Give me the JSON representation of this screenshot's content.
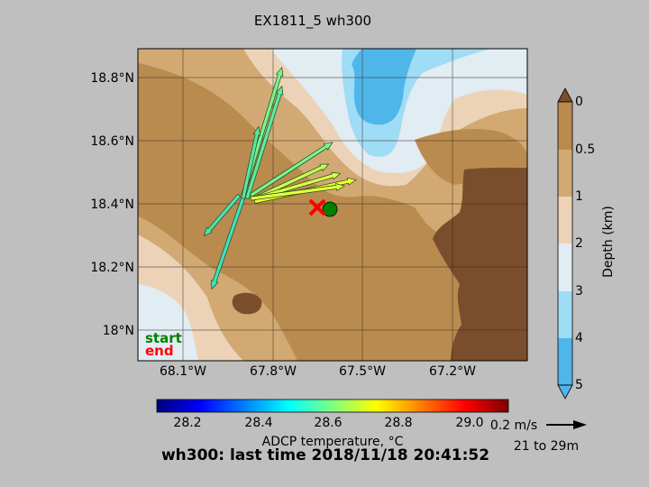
{
  "figure": {
    "title": "EX1811_5 wh300",
    "footer": "wh300: last time 2018/11/18 20:41:52"
  },
  "map": {
    "lat_ticks": [
      "18.8°N",
      "18.6°N",
      "18.4°N",
      "18.2°N",
      "18°N"
    ],
    "lon_ticks": [
      "68.1°W",
      "67.8°W",
      "67.5°W",
      "67.2°W"
    ],
    "legend": {
      "start": "start",
      "start_color": "#008000",
      "end": "end",
      "end_color": "#ff0000"
    }
  },
  "depth_colorbar": {
    "label": "Depth (km)",
    "ticks": [
      "0",
      "0.5",
      "1",
      "2",
      "3",
      "4",
      "5"
    ],
    "colors": [
      "#7a4e2c",
      "#b98b4f",
      "#d2a973",
      "#ecd3b8",
      "#e1ecf3",
      "#9fdcf5",
      "#4fb6ea"
    ]
  },
  "temp_colorbar": {
    "label": "ADCP temperature, °C",
    "ticks": [
      "28.2",
      "28.4",
      "28.6",
      "28.8",
      "29.0"
    ]
  },
  "scale": {
    "speed": "0.2 m/s",
    "depth_range": "21 to 29m"
  },
  "vectors": [
    {
      "tail": [
        0.27,
        0.53
      ],
      "head": [
        0.37,
        0.94
      ],
      "color": "#7cf28e"
    },
    {
      "tail": [
        0.28,
        0.52
      ],
      "head": [
        0.37,
        0.88
      ],
      "color": "#5fe8a0"
    },
    {
      "tail": [
        0.27,
        0.52
      ],
      "head": [
        0.31,
        0.75
      ],
      "color": "#58e6a6"
    },
    {
      "tail": [
        0.29,
        0.53
      ],
      "head": [
        0.5,
        0.7
      ],
      "color": "#7cf28e"
    },
    {
      "tail": [
        0.3,
        0.52
      ],
      "head": [
        0.49,
        0.63
      ],
      "color": "#c8ff55"
    },
    {
      "tail": [
        0.3,
        0.52
      ],
      "head": [
        0.52,
        0.6
      ],
      "color": "#dcff46"
    },
    {
      "tail": [
        0.3,
        0.51
      ],
      "head": [
        0.56,
        0.58
      ],
      "color": "#f2ff32"
    },
    {
      "tail": [
        0.29,
        0.52
      ],
      "head": [
        0.53,
        0.56
      ],
      "color": "#e8ff3c"
    },
    {
      "tail": [
        0.27,
        0.52
      ],
      "head": [
        0.19,
        0.23
      ],
      "color": "#3fe0c0"
    },
    {
      "tail": [
        0.26,
        0.53
      ],
      "head": [
        0.17,
        0.4
      ],
      "color": "#4fe4b4"
    }
  ]
}
